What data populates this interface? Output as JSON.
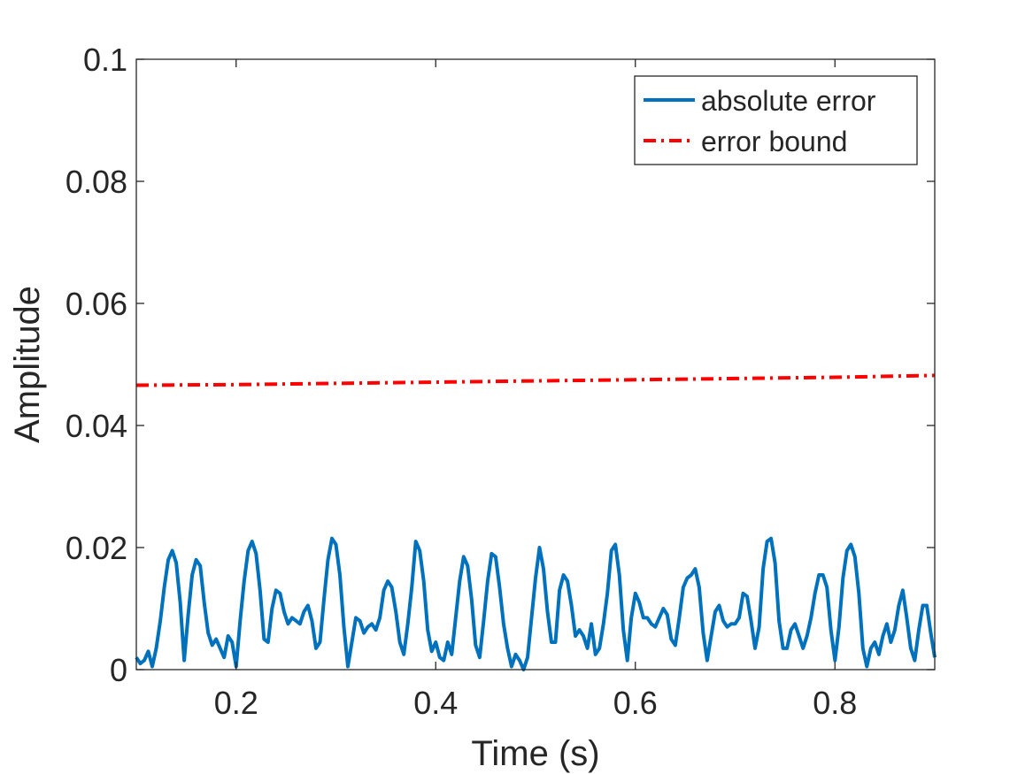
{
  "chart_data": {
    "type": "line",
    "title": "",
    "xlabel": "Time (s)",
    "ylabel": "Amplitude",
    "xlim": [
      0.1,
      0.9
    ],
    "ylim": [
      0,
      0.1
    ],
    "xticks": [
      0.2,
      0.4,
      0.6,
      0.8
    ],
    "yticks": [
      0,
      0.02,
      0.04,
      0.06,
      0.08,
      0.1
    ],
    "xtick_labels": [
      "0.2",
      "0.4",
      "0.6",
      "0.8"
    ],
    "ytick_labels": [
      "0",
      "0.02",
      "0.04",
      "0.06",
      "0.08",
      "0.1"
    ],
    "grid": false,
    "legend_position": "top-right",
    "series": [
      {
        "name": "absolute error",
        "color": "#0072BD",
        "style": "solid",
        "x": [
          0.1,
          0.104,
          0.108,
          0.112,
          0.116,
          0.12,
          0.124,
          0.128,
          0.132,
          0.136,
          0.14,
          0.144,
          0.148,
          0.152,
          0.156,
          0.16,
          0.164,
          0.168,
          0.172,
          0.176,
          0.18,
          0.184,
          0.188,
          0.192,
          0.196,
          0.2,
          0.204,
          0.208,
          0.212,
          0.216,
          0.22,
          0.224,
          0.228,
          0.232,
          0.236,
          0.24,
          0.244,
          0.248,
          0.252,
          0.256,
          0.26,
          0.264,
          0.268,
          0.272,
          0.276,
          0.28,
          0.284,
          0.288,
          0.292,
          0.296,
          0.3,
          0.304,
          0.308,
          0.312,
          0.316,
          0.32,
          0.324,
          0.328,
          0.332,
          0.336,
          0.34,
          0.344,
          0.348,
          0.352,
          0.356,
          0.36,
          0.364,
          0.368,
          0.372,
          0.376,
          0.38,
          0.384,
          0.388,
          0.392,
          0.396,
          0.4,
          0.404,
          0.408,
          0.412,
          0.416,
          0.42,
          0.424,
          0.428,
          0.432,
          0.436,
          0.44,
          0.444,
          0.448,
          0.452,
          0.456,
          0.46,
          0.464,
          0.468,
          0.472,
          0.476,
          0.48,
          0.484,
          0.488,
          0.492,
          0.496,
          0.5,
          0.504,
          0.508,
          0.512,
          0.516,
          0.52,
          0.524,
          0.528,
          0.532,
          0.536,
          0.54,
          0.544,
          0.548,
          0.552,
          0.556,
          0.56,
          0.564,
          0.568,
          0.572,
          0.576,
          0.58,
          0.584,
          0.588,
          0.592,
          0.596,
          0.6,
          0.604,
          0.608,
          0.612,
          0.616,
          0.62,
          0.624,
          0.628,
          0.632,
          0.636,
          0.64,
          0.644,
          0.648,
          0.652,
          0.656,
          0.66,
          0.664,
          0.668,
          0.672,
          0.676,
          0.68,
          0.684,
          0.688,
          0.692,
          0.696,
          0.7,
          0.704,
          0.708,
          0.712,
          0.716,
          0.72,
          0.724,
          0.728,
          0.732,
          0.736,
          0.74,
          0.744,
          0.748,
          0.752,
          0.756,
          0.76,
          0.764,
          0.768,
          0.772,
          0.776,
          0.78,
          0.784,
          0.788,
          0.792,
          0.796,
          0.8,
          0.804,
          0.808,
          0.812,
          0.816,
          0.82,
          0.824,
          0.828,
          0.832,
          0.836,
          0.84,
          0.844,
          0.848,
          0.852,
          0.856,
          0.86,
          0.864,
          0.868,
          0.872,
          0.876,
          0.88,
          0.884,
          0.888,
          0.892,
          0.896,
          0.9
        ],
        "y": [
          0.002,
          0.001,
          0.0015,
          0.003,
          0.0005,
          0.0035,
          0.008,
          0.0135,
          0.018,
          0.0195,
          0.0175,
          0.011,
          0.0015,
          0.009,
          0.0155,
          0.018,
          0.017,
          0.011,
          0.006,
          0.004,
          0.005,
          0.0035,
          0.002,
          0.0055,
          0.0045,
          0.0005,
          0.008,
          0.0145,
          0.0195,
          0.021,
          0.019,
          0.013,
          0.005,
          0.0045,
          0.01,
          0.013,
          0.0125,
          0.0095,
          0.0075,
          0.0085,
          0.008,
          0.0075,
          0.0095,
          0.0105,
          0.008,
          0.0035,
          0.0045,
          0.0115,
          0.018,
          0.0215,
          0.0205,
          0.0155,
          0.007,
          0.0005,
          0.0045,
          0.0085,
          0.008,
          0.006,
          0.007,
          0.0075,
          0.0065,
          0.0085,
          0.013,
          0.0145,
          0.0135,
          0.0095,
          0.0045,
          0.0025,
          0.0075,
          0.0135,
          0.021,
          0.0195,
          0.0145,
          0.0065,
          0.003,
          0.0045,
          0.002,
          0.0015,
          0.0045,
          0.0025,
          0.0085,
          0.0145,
          0.0185,
          0.017,
          0.0115,
          0.004,
          0.002,
          0.008,
          0.0145,
          0.019,
          0.0185,
          0.0135,
          0.0075,
          0.0035,
          0.0005,
          0.0025,
          0.0015,
          0.0,
          0.002,
          0.0085,
          0.015,
          0.02,
          0.0165,
          0.0095,
          0.0045,
          0.0045,
          0.013,
          0.0155,
          0.0145,
          0.0105,
          0.0055,
          0.0065,
          0.0055,
          0.0035,
          0.0075,
          0.0025,
          0.0035,
          0.0075,
          0.0125,
          0.0195,
          0.0205,
          0.0155,
          0.0065,
          0.0015,
          0.0085,
          0.0125,
          0.011,
          0.0085,
          0.0085,
          0.0075,
          0.007,
          0.0085,
          0.01,
          0.009,
          0.005,
          0.004,
          0.0085,
          0.0135,
          0.015,
          0.0155,
          0.0165,
          0.0135,
          0.006,
          0.0015,
          0.0055,
          0.0095,
          0.0105,
          0.008,
          0.007,
          0.0075,
          0.0075,
          0.0085,
          0.0125,
          0.012,
          0.008,
          0.0035,
          0.007,
          0.0165,
          0.021,
          0.0215,
          0.0175,
          0.008,
          0.0035,
          0.0035,
          0.0065,
          0.0075,
          0.0055,
          0.0035,
          0.0055,
          0.0085,
          0.0125,
          0.0155,
          0.0155,
          0.0135,
          0.0065,
          0.0015,
          0.007,
          0.015,
          0.0195,
          0.0205,
          0.0185,
          0.0125,
          0.0035,
          0.0005,
          0.0035,
          0.0045,
          0.0025,
          0.0055,
          0.0075,
          0.0045,
          0.0065,
          0.0105,
          0.013,
          0.0085,
          0.0035,
          0.0015,
          0.0065,
          0.0105,
          0.0105,
          0.006,
          0.002
        ]
      },
      {
        "name": "error bound",
        "color": "#FF0000",
        "style": "dash-dot",
        "x": [
          0.1,
          0.2,
          0.3,
          0.4,
          0.5,
          0.6,
          0.7,
          0.8,
          0.9
        ],
        "y": [
          0.0466,
          0.0467,
          0.0469,
          0.0471,
          0.0473,
          0.0475,
          0.0477,
          0.0479,
          0.0482
        ]
      }
    ]
  }
}
